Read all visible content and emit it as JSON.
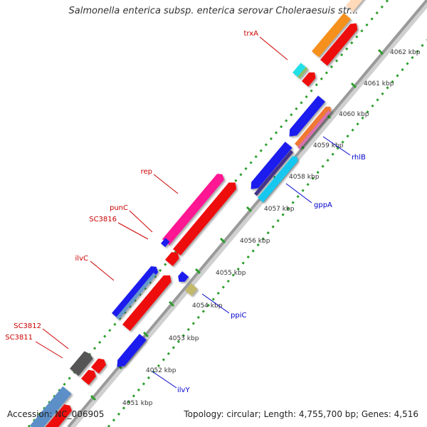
{
  "title": "Salmonella enterica subsp. enterica serovar Choleraesuis str...",
  "footer": {
    "accession": "Accession: NC_006905",
    "summary": "Topology: circular; Length: 4,755,700 bp; Genes: 4,516"
  },
  "colors": {
    "backbone": "#9a9a9a",
    "tick_dotted": "#2e9e2e",
    "label_left": "#cc0000",
    "label_right": "#0000cc",
    "scale_text": "#333333"
  },
  "scale_labels": [
    "4062 kbp",
    "4061 kbp",
    "4060 kbp",
    "4059 kbp",
    "4058 kbp",
    "4057 kbp",
    "4056 kbp",
    "4055 kbp",
    "4054 kbp",
    "4053 kbp",
    "4052 kbp",
    "4051 kbp"
  ],
  "gene_labels_left": [
    "trxA",
    "rep",
    "punC",
    "SC3816",
    "ilvC",
    "SC3812",
    "SC3811"
  ],
  "gene_labels_right": [
    "rhlB",
    "gppA",
    "ppiC",
    "ilvY"
  ]
}
